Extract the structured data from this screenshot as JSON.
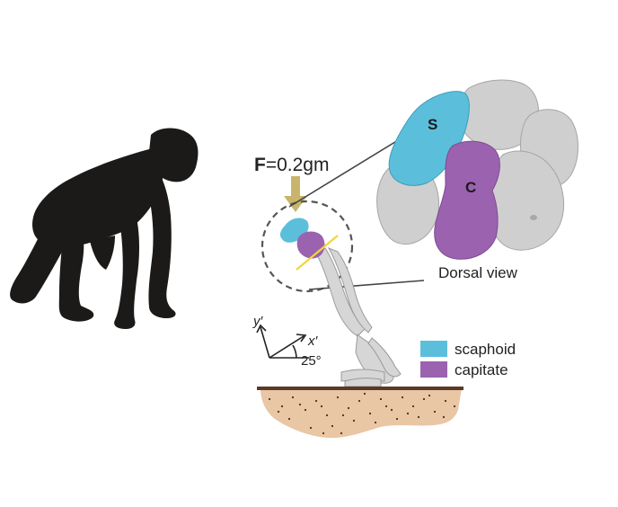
{
  "force": {
    "symbol": "F",
    "value": "=0.2gm"
  },
  "bones": {
    "scaphoid_letter": "S",
    "capitate_letter": "C"
  },
  "view_label": "Dorsal view",
  "axes": {
    "y_label": "y′",
    "x_label": "x′",
    "angle_label": "25°"
  },
  "legend": [
    {
      "label": "scaphoid",
      "color": "#5bbfdc"
    },
    {
      "label": "capitate",
      "color": "#9b62b0"
    }
  ],
  "colors": {
    "silhouette": "#1b1a19",
    "bone_gray": "#cfcfcf",
    "arrow": "#c8b46a",
    "ground_top": "#5a3a26",
    "ground_fill": "#e9c6a4",
    "section_line": "#f2d63a"
  }
}
